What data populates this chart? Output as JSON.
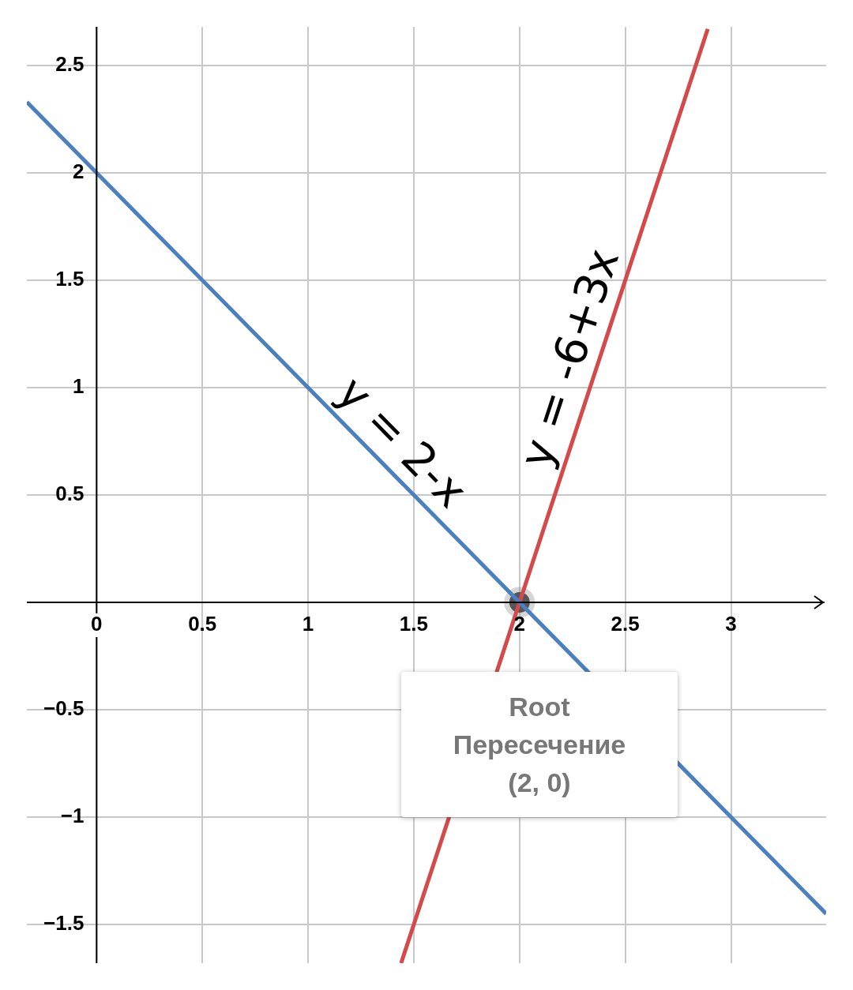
{
  "chart_data": {
    "type": "line",
    "xlim": [
      -0.33,
      3.45
    ],
    "ylim": [
      -1.68,
      2.68
    ],
    "xticks": [
      0,
      0.5,
      1,
      1.5,
      2,
      2.5,
      3
    ],
    "yticks": [
      {
        "value": -1.5,
        "label": "−1.5"
      },
      {
        "value": -1,
        "label": "−1"
      },
      {
        "value": -0.5,
        "label": "−0.5"
      },
      0.5,
      1,
      1.5,
      2,
      2.5
    ],
    "grid": true,
    "legend": false,
    "marker": "none",
    "line_style": "solid",
    "series": [
      {
        "name": "y = 2-x",
        "color": "#4a7fc0",
        "x": [
          -0.33,
          2,
          3.45
        ],
        "values": [
          2.33,
          0,
          -1.45
        ]
      },
      {
        "name": "y = -6+3x",
        "color": "#d44a4a",
        "x": [
          1.44,
          2,
          2.89
        ],
        "values": [
          -1.68,
          0,
          2.67
        ]
      },
      {
        "type": "scatter",
        "marker": "circle",
        "color": "#555555",
        "x": [
          2
        ],
        "values": [
          0
        ]
      }
    ],
    "annotations": [
      "Root\nПересечение\n(2, 0)"
    ]
  }
}
